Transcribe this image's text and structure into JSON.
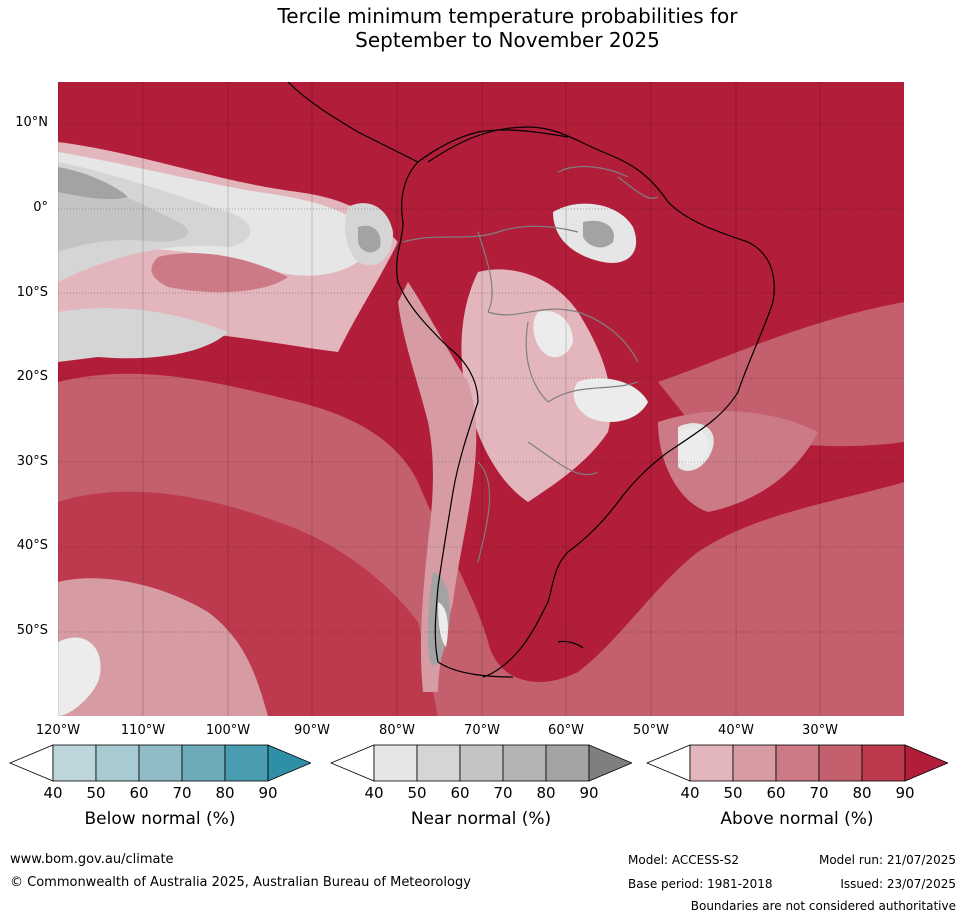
{
  "title_line1": "Tercile minimum temperature probabilities for",
  "title_line2": "September to November 2025",
  "lat_labels": [
    "10°N",
    "0°",
    "10°S",
    "20°S",
    "30°S",
    "40°S",
    "50°S"
  ],
  "lon_labels": [
    "120°W",
    "110°W",
    "100°W",
    "90°W",
    "80°W",
    "70°W",
    "60°W",
    "50°W",
    "40°W",
    "30°W"
  ],
  "colorbars": {
    "below": {
      "title": "Below normal (%)",
      "ticks": [
        "40",
        "50",
        "60",
        "70",
        "80",
        "90"
      ],
      "colors": [
        "#ffffff",
        "#bcd6dc",
        "#a8cbd2",
        "#8fbcc6",
        "#6eabb9",
        "#4a9db0",
        "#2f8fa6"
      ]
    },
    "near": {
      "title": "Near normal (%)",
      "ticks": [
        "40",
        "50",
        "60",
        "70",
        "80",
        "90"
      ],
      "colors": [
        "#ffffff",
        "#e6e6e6",
        "#d5d5d5",
        "#c4c4c4",
        "#b4b4b4",
        "#a3a3a3",
        "#7f7f7f"
      ]
    },
    "above": {
      "title": "Above normal (%)",
      "ticks": [
        "40",
        "50",
        "60",
        "70",
        "80",
        "90"
      ],
      "colors": [
        "#ffffff",
        "#e3b6bd",
        "#d79ba4",
        "#cb7a86",
        "#c4606e",
        "#bd3a4e",
        "#b21d3a"
      ]
    }
  },
  "footer": {
    "url": "www.bom.gov.au/climate",
    "copyright": "© Commonwealth of Australia 2025, Australian Bureau of Meteorology",
    "model": "Model: ACCESS-S2",
    "model_run": "Model run: 21/07/2025",
    "base_period": "Base period: 1981-2018",
    "issued": "Issued: 23/07/2025",
    "disclaimer": "Boundaries are not considered authoritative"
  }
}
